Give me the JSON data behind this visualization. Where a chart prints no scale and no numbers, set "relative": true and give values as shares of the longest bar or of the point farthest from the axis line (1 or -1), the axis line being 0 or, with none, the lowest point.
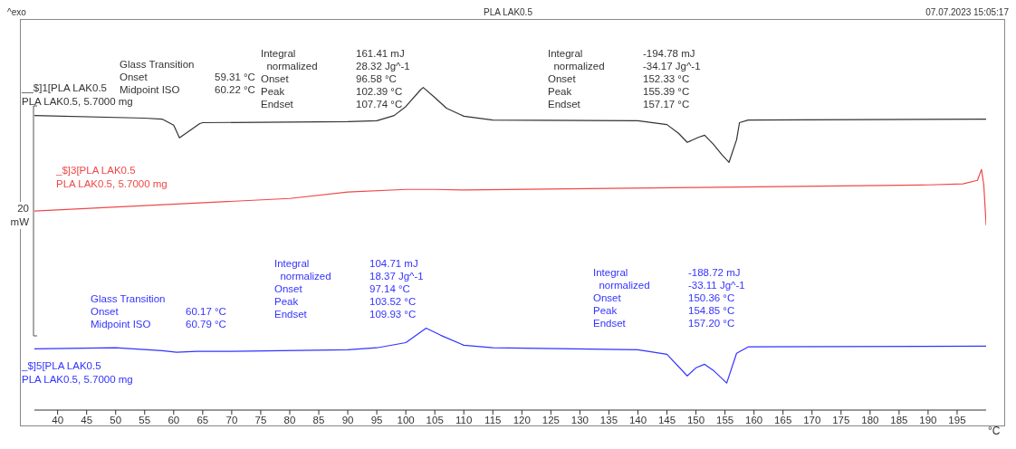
{
  "chart_data": {
    "type": "line",
    "title": "PLA LAK0.5",
    "xlabel": "°C",
    "ylabel": "20 mW",
    "relative": true,
    "xlim": [
      36,
      200
    ],
    "xticks": [
      40,
      45,
      50,
      55,
      60,
      65,
      70,
      75,
      80,
      85,
      90,
      95,
      100,
      105,
      110,
      115,
      120,
      125,
      130,
      135,
      140,
      145,
      150,
      155,
      160,
      165,
      170,
      175,
      180,
      185,
      190,
      195
    ],
    "series": [
      {
        "name": "__$]1[PLA LAK0.5\nPLA LAK0.5, 5.7000 mg",
        "color": "#333333",
        "x": [
          36,
          55,
          58,
          60,
          61,
          64.5,
          65,
          90,
          95,
          98,
          100,
          102.5,
          103,
          105,
          107,
          110,
          115,
          140,
          145,
          147,
          148.5,
          150.5,
          151.5,
          153,
          154.5,
          155.7,
          157,
          157.5,
          159,
          200
        ],
        "values": [
          0.913,
          0.905,
          0.902,
          0.883,
          0.844,
          0.888,
          0.891,
          0.894,
          0.897,
          0.913,
          0.941,
          0.992,
          1.0,
          0.969,
          0.936,
          0.911,
          0.899,
          0.897,
          0.885,
          0.858,
          0.83,
          0.846,
          0.852,
          0.824,
          0.791,
          0.768,
          0.838,
          0.891,
          0.899,
          0.902
        ]
      },
      {
        "name": "_$]3[PLA LAK0.5\nPLA LAK0.5, 5.7000 mg",
        "color": "#f04848",
        "x": [
          36,
          80,
          90,
          100,
          105,
          110,
          150,
          190,
          196,
          198.5,
          199.2,
          199.6,
          200
        ],
        "values": [
          0.617,
          0.656,
          0.676,
          0.684,
          0.684,
          0.682,
          0.69,
          0.698,
          0.701,
          0.712,
          0.746,
          0.698,
          0.573
        ]
      },
      {
        "name": "_$]5[PLA LAK0.5\nPLA LAK0.5, 5.7000 mg",
        "color": "#3333ff",
        "x": [
          36,
          50,
          58,
          60.5,
          64,
          70,
          90,
          95,
          100,
          103.5,
          106,
          110,
          115,
          140,
          145,
          148.5,
          150,
          151.5,
          153,
          155.3,
          157,
          159,
          200
        ],
        "values": [
          0.19,
          0.193,
          0.184,
          0.179,
          0.182,
          0.182,
          0.187,
          0.193,
          0.209,
          0.254,
          0.232,
          0.201,
          0.193,
          0.187,
          0.173,
          0.106,
          0.131,
          0.142,
          0.123,
          0.084,
          0.176,
          0.196,
          0.198
        ]
      }
    ],
    "annotations": [
      "^exo",
      "07.07.2023 15:05:17",
      "Glass Transition\nOnset\t59.31 °C\nMidpoint ISO\t60.22 °C",
      "Integral\t161.41 mJ\n  normalized\t28.32 Jg^-1\nOnset\t96.58 °C\nPeak\t102.39 °C\nEndset\t107.74 °C",
      "Integral\t-194.78 mJ\n  normalized\t-34.17 Jg^-1\nOnset\t152.33 °C\nPeak\t155.39 °C\nEndset\t157.17 °C",
      "Glass Transition\nOnset\t60.17 °C\nMidpoint ISO\t60.79 °C",
      "Integral\t104.71 mJ\n  normalized\t18.37 Jg^-1\nOnset\t97.14 °C\nPeak\t103.52 °C\nEndset\t109.93 °C",
      "Integral\t-188.72 mJ\n  normalized\t-33.11 Jg^-1\nOnset\t150.36 °C\nPeak\t154.85 °C\nEndset\t157.20 °C"
    ]
  }
}
